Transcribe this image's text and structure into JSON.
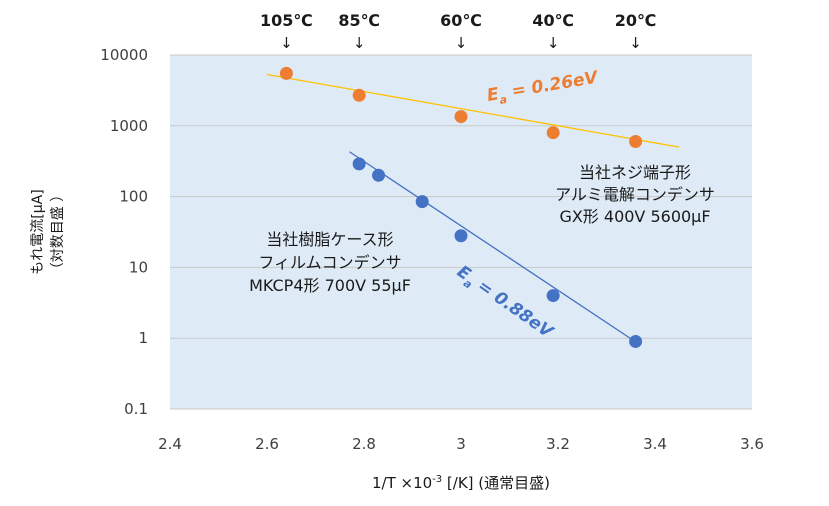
{
  "chart_data": {
    "type": "scatter",
    "x_axis": {
      "label_main": "1/T  ×10",
      "label_exp": "-3",
      "label_tail": " [/K] (通常目盛)",
      "range": [
        2.4,
        3.6
      ],
      "ticks": [
        "2.4",
        "2.6",
        "2.8",
        "3",
        "3.2",
        "3.4",
        "3.6"
      ]
    },
    "y_axis": {
      "label_line1": "もれ電流[μA]",
      "label_line2": "（対数目盛 ）",
      "scale": "log",
      "range": [
        0.1,
        10000
      ],
      "ticks": [
        "0.1",
        "1",
        "10",
        "100",
        "1000",
        "10000"
      ]
    },
    "grid": "horizontal",
    "temperature_markers": [
      {
        "label": "105℃",
        "x": 2.64
      },
      {
        "label": "85℃",
        "x": 2.79
      },
      {
        "label": "60℃",
        "x": 3.0
      },
      {
        "label": "40℃",
        "x": 3.19
      },
      {
        "label": "20℃",
        "x": 3.36
      }
    ],
    "arrow_glyph": "↓",
    "series": [
      {
        "color": "#ED7D31",
        "line_color": "#FFC000",
        "points": [
          {
            "x": 2.64,
            "y": 5500
          },
          {
            "x": 2.79,
            "y": 2700
          },
          {
            "x": 3.0,
            "y": 1350
          },
          {
            "x": 3.19,
            "y": 800
          },
          {
            "x": 3.36,
            "y": 600
          }
        ],
        "trendline": [
          [
            2.6,
            5300
          ],
          [
            3.45,
            500
          ]
        ],
        "ea_label": {
          "main": "E",
          "sub": "a",
          "rest": " = 0.26eV"
        },
        "note_lines": [
          "当社ネジ端子形",
          "アルミ電解コンデンサ",
          "GX形 400V 5600μF"
        ]
      },
      {
        "color": "#4472C4",
        "line_color": "#4472C4",
        "points": [
          {
            "x": 2.79,
            "y": 290
          },
          {
            "x": 2.83,
            "y": 200
          },
          {
            "x": 2.92,
            "y": 85
          },
          {
            "x": 3.0,
            "y": 28
          },
          {
            "x": 3.19,
            "y": 4
          },
          {
            "x": 3.36,
            "y": 0.9
          }
        ],
        "trendline": [
          [
            2.77,
            430
          ],
          [
            3.37,
            0.8
          ]
        ],
        "ea_label": {
          "main": "E",
          "sub": "a",
          "rest": " = 0.88eV"
        },
        "note_lines": [
          "当社樹脂ケース形",
          "フィルムコンデンサ",
          "MKCP4形 700V 55μF"
        ]
      }
    ]
  }
}
